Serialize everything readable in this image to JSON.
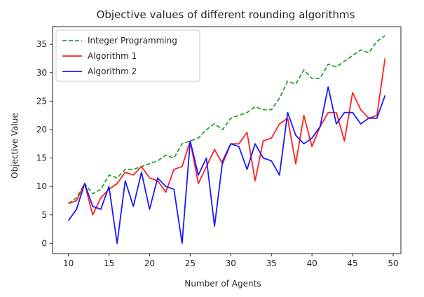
{
  "chart_data": {
    "type": "line",
    "title": "Objective values of different rounding algorithms",
    "xlabel": "Number of Agents",
    "ylabel": "Objective Value",
    "xlim": [
      8.05,
      50.95
    ],
    "ylim": [
      -1.8,
      38.1
    ],
    "xticks": [
      10,
      15,
      20,
      25,
      30,
      35,
      40,
      45,
      50
    ],
    "yticks": [
      0,
      5,
      10,
      15,
      20,
      25,
      30,
      35
    ],
    "grid": false,
    "legend_position": "upper left",
    "x": [
      10,
      11,
      12,
      13,
      14,
      15,
      16,
      17,
      18,
      19,
      20,
      21,
      22,
      23,
      24,
      25,
      26,
      27,
      28,
      29,
      30,
      31,
      32,
      33,
      34,
      35,
      36,
      37,
      38,
      39,
      40,
      41,
      42,
      43,
      44,
      45,
      46,
      47,
      48,
      49
    ],
    "series": [
      {
        "name": "Integer Programming",
        "color": "#2ca02c",
        "style": "dashed",
        "values": [
          7,
          8,
          10.5,
          8.7,
          9.5,
          12,
          11.5,
          13,
          13,
          13.5,
          14,
          14.5,
          15.5,
          15,
          17.5,
          18,
          18.5,
          20,
          21,
          20,
          22,
          22.5,
          23,
          24,
          23.5,
          23.5,
          25.5,
          28.5,
          28,
          30.5,
          29,
          29,
          31.5,
          31,
          32,
          33,
          34,
          33.5,
          35.5,
          36.5
        ]
      },
      {
        "name": "Algorithm 1",
        "color": "#ff2020",
        "style": "solid",
        "values": [
          7,
          7.5,
          10.5,
          5,
          8,
          9.5,
          10.5,
          12.5,
          12,
          13.5,
          11.5,
          11,
          9,
          13,
          13.5,
          18,
          10.5,
          13.5,
          16.5,
          14,
          17.5,
          17.5,
          19.5,
          11,
          18,
          18.5,
          21,
          22,
          14,
          22.5,
          17,
          20.5,
          23,
          23,
          18,
          26.5,
          23.5,
          22,
          22.5,
          32.5
        ]
      },
      {
        "name": "Algorithm 2",
        "color": "#1a1aff",
        "style": "solid",
        "values": [
          4,
          6,
          10.5,
          6.5,
          6,
          10,
          0,
          11,
          6.5,
          12.5,
          6,
          11.5,
          10,
          9.5,
          0,
          18,
          12,
          15,
          3,
          14.5,
          17.5,
          17,
          13,
          17.5,
          15,
          14.5,
          12,
          23,
          19,
          17.5,
          18.5,
          20.5,
          27.5,
          21,
          23,
          23,
          21,
          22,
          22,
          26
        ]
      }
    ]
  }
}
